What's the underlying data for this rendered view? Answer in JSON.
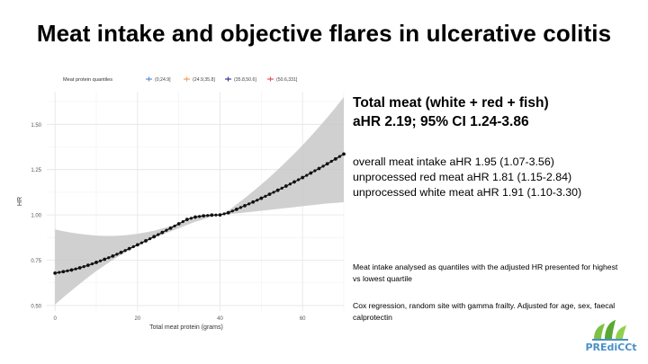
{
  "slide": {
    "title": "Meat intake and objective flares in ulcerative colitis",
    "headline": {
      "line1": "Total meat (white + red + fish)",
      "line2": "aHR 2.19; 95% CI 1.24-3.86"
    },
    "results": [
      "overall meat intake aHR 1.95 (1.07-3.56)",
      "unprocessed red meat aHR 1.81 (1.15-2.84)",
      "unprocessed white meat aHR 1.91 (1.10-3.30)"
    ],
    "note_quantiles": "Meat intake analysed as quantiles with the adjusted HR presented for highest vs lowest quartile",
    "note_model": "Cox regression, random site with gamma frailty. Adjusted for age, sex, faecal calprotectin",
    "logo_text": "PREdiCCt",
    "colors": {
      "logo_blue": "#4a8fc9",
      "logo_green": "#7cc242"
    }
  },
  "chart_data": {
    "type": "line",
    "xlabel": "Total meat protein (grams)",
    "ylabel": "HR",
    "xlim": [
      -2,
      70
    ],
    "ylim": [
      0.47,
      1.68
    ],
    "x_ticks": [
      0,
      20,
      40,
      60
    ],
    "y_ticks": [
      0.5,
      0.75,
      1.0,
      1.25,
      1.5
    ],
    "y_tick_labels": [
      "0.50",
      "0.75",
      "1.00",
      "1.25",
      "1.50"
    ],
    "grid": true,
    "legend": {
      "title": "Meat protein quantiles",
      "position": "top",
      "entries": [
        {
          "label": "(0,24.9]",
          "color": "#5b8fd6"
        },
        {
          "label": "(24.9,35.8]",
          "color": "#f0a35e"
        },
        {
          "label": "(35.8,50.6]",
          "color": "#3a3a9a"
        },
        {
          "label": "(50.6,331]",
          "color": "#e05a5a"
        }
      ]
    },
    "series": [
      {
        "x": [
          0,
          2,
          4,
          6,
          8,
          10,
          12,
          14,
          16,
          18,
          20,
          22,
          24,
          26,
          28,
          30,
          32,
          34,
          36,
          38,
          40,
          42,
          44,
          46,
          48,
          50,
          52,
          54,
          56,
          58,
          60,
          62,
          64,
          66,
          68,
          70
        ],
        "hr": [
          0.679,
          0.687,
          0.696,
          0.708,
          0.722,
          0.738,
          0.755,
          0.773,
          0.793,
          0.814,
          0.835,
          0.857,
          0.88,
          0.903,
          0.927,
          0.951,
          0.975,
          0.988,
          0.995,
          0.999,
          1.0,
          1.012,
          1.031,
          1.051,
          1.071,
          1.092,
          1.114,
          1.136,
          1.159,
          1.182,
          1.206,
          1.231,
          1.256,
          1.282,
          1.309,
          1.336
        ],
        "lower": [
          0.505,
          0.545,
          0.583,
          0.62,
          0.656,
          0.69,
          0.722,
          0.752,
          0.78,
          0.806,
          0.83,
          0.852,
          0.872,
          0.891,
          0.909,
          0.926,
          0.945,
          0.962,
          0.976,
          0.991,
          1.0,
          1.004,
          1.008,
          1.013,
          1.018,
          1.023,
          1.028,
          1.033,
          1.038,
          1.043,
          1.048,
          1.053,
          1.058,
          1.063,
          1.066,
          1.07
        ],
        "upper": [
          0.92,
          0.91,
          0.902,
          0.895,
          0.89,
          0.886,
          0.884,
          0.884,
          0.886,
          0.89,
          0.896,
          0.904,
          0.913,
          0.925,
          0.938,
          0.953,
          0.968,
          0.982,
          0.992,
          0.999,
          1.0,
          1.023,
          1.058,
          1.093,
          1.13,
          1.168,
          1.208,
          1.25,
          1.293,
          1.338,
          1.385,
          1.434,
          1.485,
          1.538,
          1.592,
          1.65
        ]
      }
    ]
  }
}
